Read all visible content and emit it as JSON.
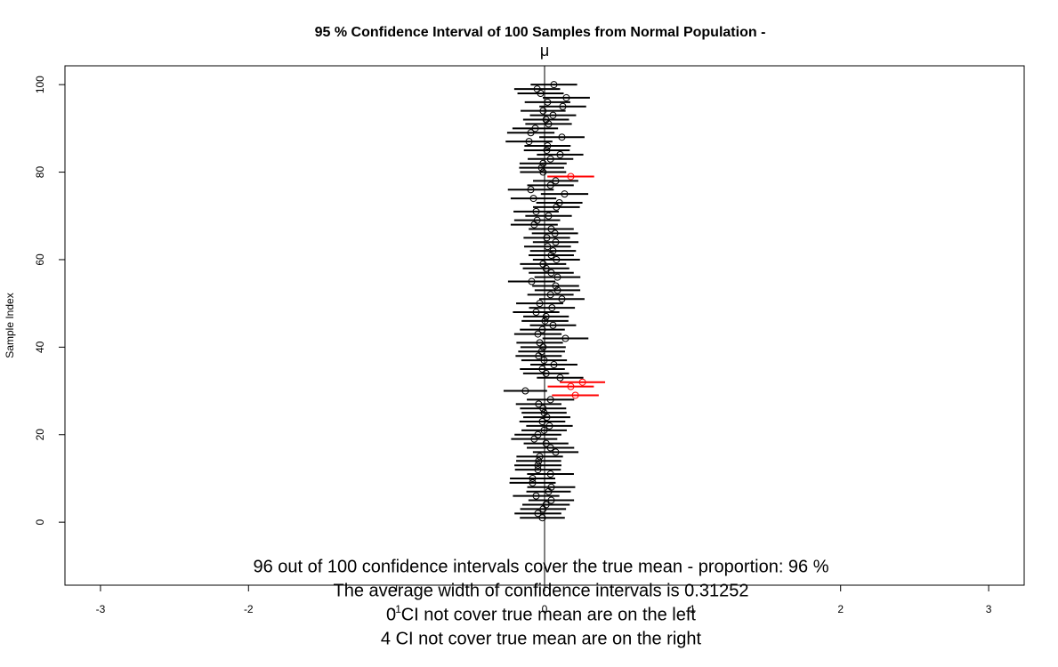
{
  "chart_data": {
    "type": "interval",
    "title": "95 % Confidence Interval of 100  Samples from Normal Population -",
    "subtitle": "μ",
    "y_label": "Sample Index",
    "mu": 0,
    "color": "#000000",
    "miss_color": "#ff0000",
    "xlim": [
      -3.24,
      3.24
    ],
    "ylim": [
      -14.4,
      104.3
    ],
    "xticks": [
      -3,
      -2,
      -1,
      0,
      1,
      2,
      3
    ],
    "yticks": [
      0,
      20,
      40,
      60,
      80,
      100
    ],
    "annotations": [
      "96 out of 100 confidence intervals cover the true mean - proportion: 96 %",
      "The average width of confidence intervals is 0.31252",
      "0 CI not cover true mean are on the left",
      "4 CI not cover true mean are on the right"
    ],
    "y": [
      1,
      2,
      3,
      4,
      5,
      6,
      7,
      8,
      9,
      10,
      11,
      12,
      13,
      14,
      15,
      16,
      17,
      18,
      19,
      20,
      21,
      22,
      23,
      24,
      25,
      26,
      27,
      28,
      29,
      30,
      31,
      32,
      33,
      34,
      35,
      36,
      37,
      38,
      39,
      40,
      41,
      42,
      43,
      44,
      45,
      46,
      47,
      48,
      49,
      50,
      51,
      52,
      53,
      54,
      55,
      56,
      57,
      58,
      59,
      60,
      61,
      62,
      63,
      64,
      65,
      66,
      67,
      68,
      69,
      70,
      71,
      72,
      73,
      74,
      75,
      76,
      77,
      78,
      79,
      80,
      81,
      82,
      83,
      84,
      85,
      86,
      87,
      88,
      89,
      90,
      91,
      92,
      93,
      94,
      95,
      96,
      97,
      98,
      99,
      100
    ],
    "means": [
      -0.015,
      -0.045,
      -0.01,
      0.01,
      0.045,
      -0.057,
      0.027,
      0.045,
      -0.081,
      -0.081,
      0.04,
      -0.045,
      -0.045,
      -0.04,
      -0.033,
      0.075,
      0.04,
      0.01,
      -0.07,
      -0.045,
      -0.003,
      0.033,
      -0.015,
      0.015,
      -0.003,
      -0.01,
      -0.04,
      0.04,
      0.208,
      -0.13,
      0.177,
      0.256,
      0.105,
      0.01,
      -0.015,
      0.063,
      -0.003,
      -0.04,
      -0.02,
      -0.01,
      -0.033,
      0.141,
      -0.045,
      -0.015,
      0.057,
      0.003,
      0.01,
      -0.057,
      0.05,
      -0.033,
      0.117,
      0.04,
      0.087,
      0.075,
      -0.087,
      0.087,
      0.045,
      0.01,
      -0.01,
      0.08,
      0.045,
      0.057,
      0.02,
      0.075,
      0.015,
      0.07,
      0.045,
      -0.07,
      -0.05,
      0.027,
      -0.057,
      0.08,
      0.1,
      -0.075,
      0.135,
      -0.093,
      0.04,
      0.075,
      0.177,
      -0.01,
      -0.02,
      -0.01,
      0.04,
      0.105,
      0.015,
      0.02,
      -0.105,
      0.117,
      -0.093,
      -0.063,
      0.027,
      0.01,
      0.057,
      -0.01,
      0.123,
      0.02,
      0.147,
      -0.027,
      -0.05,
      0.063
    ],
    "errors": [
      0.152,
      0.158,
      0.155,
      0.16,
      0.154,
      0.157,
      0.15,
      0.162,
      0.156,
      0.153,
      0.158,
      0.155,
      0.159,
      0.152,
      0.157,
      0.154,
      0.16,
      0.151,
      0.156,
      0.158,
      0.153,
      0.157,
      0.155,
      0.159,
      0.152,
      0.156,
      0.154,
      0.16,
      0.158,
      0.147,
      0.156,
      0.153,
      0.157,
      0.155,
      0.152,
      0.159,
      0.154,
      0.156,
      0.158,
      0.153,
      0.157,
      0.155,
      0.16,
      0.152,
      0.156,
      0.158,
      0.154,
      0.157,
      0.155,
      0.159,
      0.153,
      0.156,
      0.154,
      0.158,
      0.16,
      0.155,
      0.152,
      0.157,
      0.156,
      0.159,
      0.153,
      0.155,
      0.158,
      0.154,
      0.157,
      0.156,
      0.152,
      0.159,
      0.155,
      0.157,
      0.153,
      0.158,
      0.156,
      0.154,
      0.16,
      0.155,
      0.157,
      0.153,
      0.158,
      0.156,
      0.152,
      0.159,
      0.154,
      0.157,
      0.155,
      0.156,
      0.158,
      0.153,
      0.16,
      0.154,
      0.157,
      0.155,
      0.156,
      0.152,
      0.158,
      0.154,
      0.159,
      0.156,
      0.155,
      0.157
    ]
  }
}
